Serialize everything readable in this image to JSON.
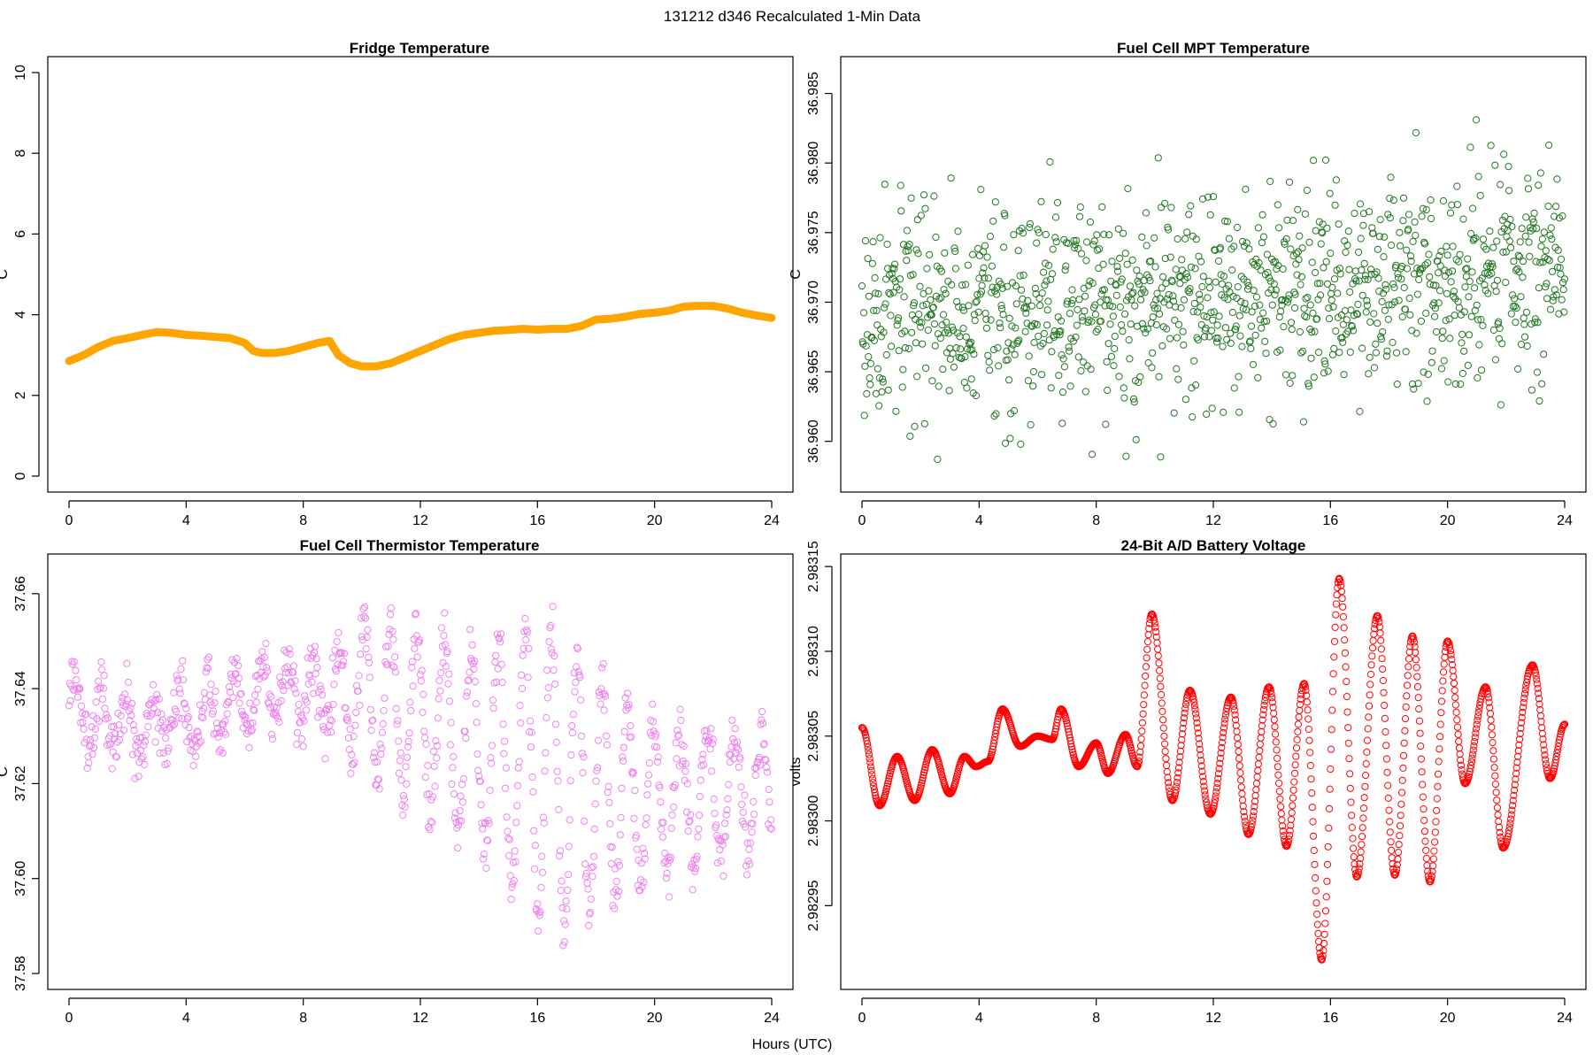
{
  "figure": {
    "super_title": "131212   d346   Recalculated 1-Min Data",
    "xlabel": "Hours (UTC)"
  },
  "chart_data": [
    {
      "id": "fridge",
      "type": "scatter",
      "title": "Fridge Temperature",
      "ylabel": "C",
      "xlabel": "",
      "color": "#FFA500",
      "marker": "filled-thick-line",
      "xlim": [
        0,
        24
      ],
      "ylim": [
        0,
        10
      ],
      "xticks": [
        0,
        4,
        8,
        12,
        16,
        20,
        24
      ],
      "yticks": [
        0,
        2,
        4,
        6,
        8,
        10
      ],
      "ytick_labels": [
        "0",
        "2",
        "4",
        "6",
        "8",
        "10"
      ],
      "x": [
        0,
        0.5,
        1,
        1.5,
        2,
        2.5,
        3,
        3.5,
        4,
        4.5,
        5,
        5.5,
        6,
        6.3,
        6.6,
        7,
        7.5,
        8,
        8.5,
        8.9,
        9.2,
        9.6,
        10,
        10.5,
        11,
        11.5,
        12,
        12.5,
        13,
        13.5,
        14,
        14.5,
        15,
        15.5,
        16,
        16.5,
        17,
        17.5,
        18,
        18.5,
        19,
        19.5,
        20,
        20.5,
        21,
        21.5,
        22,
        22.5,
        23,
        23.5,
        24
      ],
      "y": [
        2.85,
        3.0,
        3.2,
        3.35,
        3.42,
        3.5,
        3.57,
        3.55,
        3.5,
        3.48,
        3.45,
        3.42,
        3.3,
        3.1,
        3.05,
        3.05,
        3.1,
        3.2,
        3.3,
        3.35,
        3.0,
        2.8,
        2.72,
        2.72,
        2.8,
        2.95,
        3.1,
        3.25,
        3.4,
        3.5,
        3.55,
        3.6,
        3.62,
        3.65,
        3.63,
        3.65,
        3.65,
        3.72,
        3.88,
        3.9,
        3.95,
        4.02,
        4.05,
        4.1,
        4.2,
        4.22,
        4.22,
        4.15,
        4.05,
        3.98,
        3.92
      ]
    },
    {
      "id": "mpt",
      "type": "scatter",
      "title": "Fuel Cell MPT Temperature",
      "ylabel": "C",
      "xlabel": "",
      "color": "#227722",
      "marker": "open-circle",
      "xlim": [
        0,
        24
      ],
      "ylim": [
        36.9575,
        36.9865
      ],
      "xticks": [
        0,
        4,
        8,
        12,
        16,
        20,
        24
      ],
      "yticks": [
        36.96,
        36.965,
        36.97,
        36.975,
        36.98,
        36.985
      ],
      "ytick_labels": [
        "36.960",
        "36.965",
        "36.970",
        "36.975",
        "36.980",
        "36.985"
      ],
      "x_step": 0.02,
      "trend": [
        [
          0,
          36.9685
        ],
        [
          24,
          36.9725
        ]
      ],
      "scatter_sd": 0.0037,
      "seed": 17
    },
    {
      "id": "thermistor",
      "type": "scatter",
      "title": "Fuel Cell Thermistor Temperature",
      "ylabel": "C",
      "xlabel": "",
      "color": "#EE82EE",
      "marker": "open-circle",
      "xlim": [
        0,
        24
      ],
      "ylim": [
        37.58,
        37.665
      ],
      "xticks": [
        0,
        4,
        8,
        12,
        16,
        20,
        24
      ],
      "yticks": [
        37.58,
        37.6,
        37.62,
        37.64,
        37.66
      ],
      "ytick_labels": [
        "37.58",
        "37.60",
        "37.62",
        "37.64",
        "37.66"
      ],
      "x_step": 0.025,
      "baseline": [
        [
          0,
          37.637
        ],
        [
          2,
          37.632
        ],
        [
          4,
          37.634
        ],
        [
          6,
          37.638
        ],
        [
          8,
          37.64
        ],
        [
          10,
          37.638
        ],
        [
          12,
          37.634
        ],
        [
          14,
          37.628
        ],
        [
          16,
          37.622
        ],
        [
          18,
          37.618
        ],
        [
          20,
          37.615
        ],
        [
          22,
          37.618
        ],
        [
          24,
          37.618
        ]
      ],
      "amplitude": [
        [
          0,
          0.006
        ],
        [
          9,
          0.007
        ],
        [
          10,
          0.015
        ],
        [
          12,
          0.018
        ],
        [
          14,
          0.02
        ],
        [
          15.5,
          0.028
        ],
        [
          16.5,
          0.032
        ],
        [
          18,
          0.025
        ],
        [
          20,
          0.016
        ],
        [
          22,
          0.014
        ],
        [
          24,
          0.012
        ]
      ],
      "period_hours": 0.9,
      "noise": 0.003,
      "seed": 5
    },
    {
      "id": "battery",
      "type": "scatter",
      "title": "24-Bit A/D Battery Voltage",
      "ylabel": "volts",
      "xlabel": "",
      "color": "#FF0000",
      "marker": "open-circle",
      "xlim": [
        0,
        24
      ],
      "ylim": [
        2.98291,
        2.983148
      ],
      "xticks": [
        0,
        4,
        8,
        12,
        16,
        20,
        24
      ],
      "yticks": [
        2.98295,
        2.983,
        2.98305,
        2.9831,
        2.98315
      ],
      "ytick_labels": [
        "2.98295",
        "2.98300",
        "2.98305",
        "2.98310",
        "2.98315"
      ],
      "x_step": 0.02,
      "extrema": [
        [
          0,
          2.983055
        ],
        [
          0.6,
          2.983009
        ],
        [
          1.2,
          2.983038
        ],
        [
          1.8,
          2.983012
        ],
        [
          2.4,
          2.983042
        ],
        [
          3.0,
          2.983016
        ],
        [
          3.5,
          2.983038
        ],
        [
          3.9,
          2.983032
        ],
        [
          4.3,
          2.983035
        ],
        [
          4.8,
          2.983066
        ],
        [
          5.4,
          2.983044
        ],
        [
          6.0,
          2.98305
        ],
        [
          6.5,
          2.983048
        ],
        [
          6.8,
          2.983066
        ],
        [
          7.4,
          2.983032
        ],
        [
          8.0,
          2.983046
        ],
        [
          8.4,
          2.983028
        ],
        [
          9.0,
          2.983051
        ],
        [
          9.4,
          2.983032
        ],
        [
          9.9,
          2.983122
        ],
        [
          10.6,
          2.983012
        ],
        [
          11.2,
          2.983077
        ],
        [
          11.9,
          2.983004
        ],
        [
          12.6,
          2.983073
        ],
        [
          13.2,
          2.982992
        ],
        [
          13.9,
          2.983079
        ],
        [
          14.5,
          2.982985
        ],
        [
          15.1,
          2.983081
        ],
        [
          15.7,
          2.982918
        ],
        [
          16.3,
          2.983143
        ],
        [
          16.9,
          2.982967
        ],
        [
          17.6,
          2.983121
        ],
        [
          18.2,
          2.982968
        ],
        [
          18.8,
          2.983109
        ],
        [
          19.4,
          2.982964
        ],
        [
          20.0,
          2.983106
        ],
        [
          20.6,
          2.983022
        ],
        [
          21.3,
          2.983079
        ],
        [
          21.9,
          2.982984
        ],
        [
          22.9,
          2.983092
        ],
        [
          23.5,
          2.983025
        ],
        [
          24,
          2.983057
        ]
      ]
    }
  ]
}
